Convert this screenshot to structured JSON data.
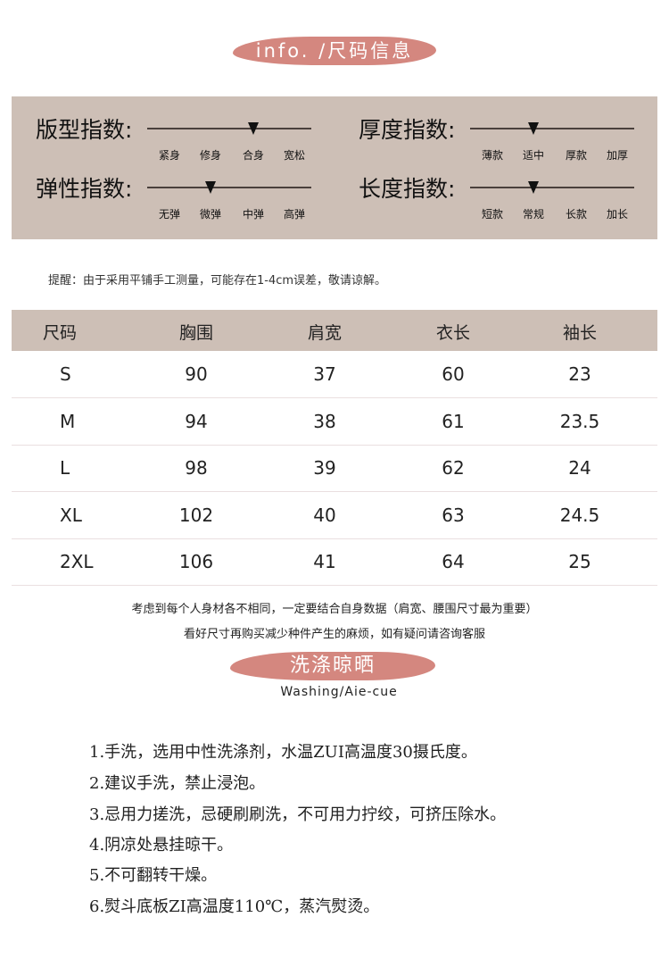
{
  "header_banner": "info. /尺码信息",
  "indices": [
    {
      "title": "版型指数:",
      "options": [
        "紧身",
        "修身",
        "合身",
        "宽松"
      ],
      "selected_index": 2
    },
    {
      "title": "厚度指数:",
      "options": [
        "薄款",
        "适中",
        "厚款",
        "加厚"
      ],
      "selected_index": 1
    },
    {
      "title": "弹性指数:",
      "options": [
        "无弹",
        "微弹",
        "中弹",
        "高弹"
      ],
      "selected_index": 1
    },
    {
      "title": "长度指数:",
      "options": [
        "短款",
        "常规",
        "长款",
        "加长"
      ],
      "selected_index": 1
    }
  ],
  "note": "提醒：由于采用平铺手工测量，可能存在1-4cm误差，敬请谅解。",
  "table": {
    "headers": [
      "尺码",
      "胸围",
      "肩宽",
      "衣长",
      "袖长"
    ],
    "rows": [
      [
        "S",
        "90",
        "37",
        "60",
        "23"
      ],
      [
        "M",
        "94",
        "38",
        "61",
        "23.5"
      ],
      [
        "L",
        "98",
        "39",
        "62",
        "24"
      ],
      [
        "XL",
        "102",
        "40",
        "63",
        "24.5"
      ],
      [
        "2XL",
        "106",
        "41",
        "64",
        "25"
      ]
    ]
  },
  "tips": [
    "考虑到每个人身材各不相同，一定要结合自身数据（肩宽、腰围尺寸最为重要）",
    "看好尺寸再购买减少种件产生的麻烦，如有疑问请咨询客服"
  ],
  "washing": {
    "banner": "洗涤晾晒",
    "subtitle": "Washing/Aie-cue",
    "items": [
      "1.手洗，选用中性洗涤剂，水温ZUI高温度30摄氏度。",
      "2.建议手洗，禁止浸泡。",
      "3.忌用力搓洗，忌硬刷刷洗，不可用力拧绞，可挤压除水。",
      "4.阴凉处悬挂晾干。",
      "5.不可翻转干燥。",
      "6.熨斗底板ZI高温度110℃，蒸汽熨烫。"
    ]
  },
  "colors": {
    "banner": "#d4877f",
    "panel": "#cdbfb6"
  }
}
